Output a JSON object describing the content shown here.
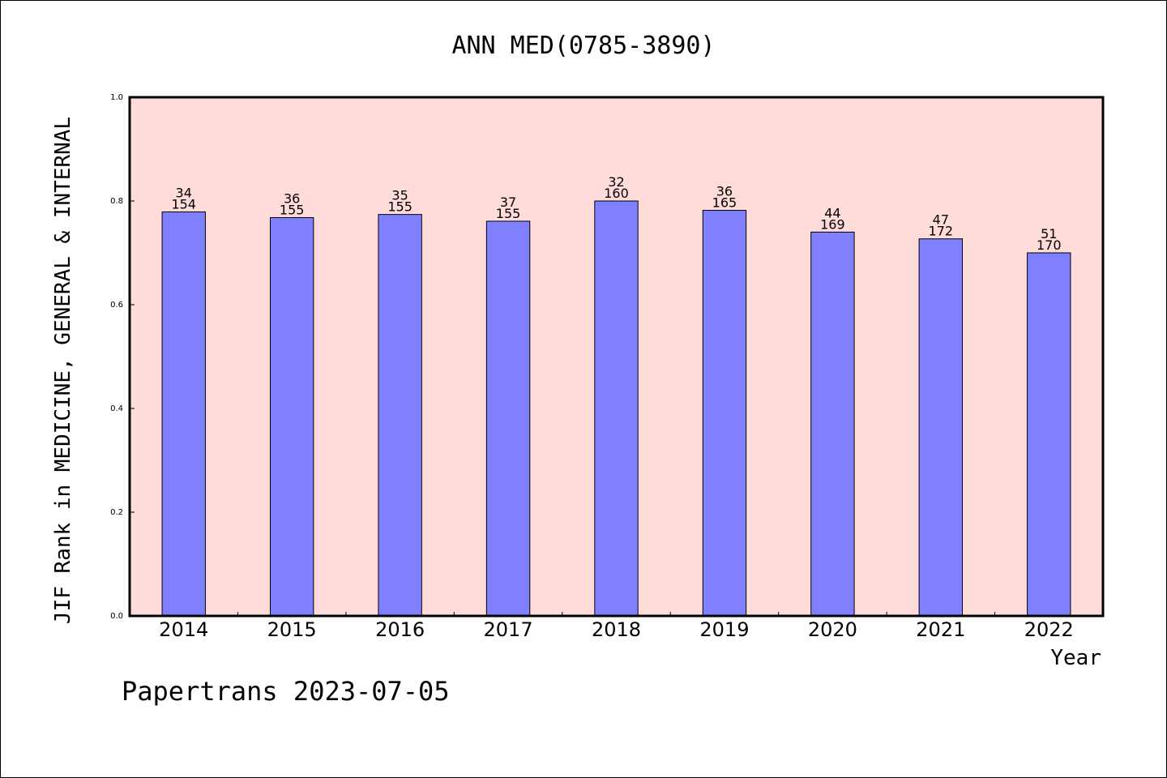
{
  "chart_data": {
    "type": "bar",
    "title": "ANN MED(0785-3890)",
    "xlabel": "Year",
    "ylabel": "JIF Rank in MEDICINE, GENERAL & INTERNAL",
    "ylim": [
      0,
      1
    ],
    "yticks": [
      "0.0",
      "0.2",
      "0.4",
      "0.6",
      "0.8",
      "1.0"
    ],
    "categories": [
      "2014",
      "2015",
      "2016",
      "2017",
      "2018",
      "2019",
      "2020",
      "2021",
      "2022"
    ],
    "values": [
      0.779,
      0.768,
      0.774,
      0.761,
      0.8,
      0.782,
      0.74,
      0.727,
      0.7
    ],
    "rank_labels": [
      "34",
      "36",
      "35",
      "37",
      "32",
      "36",
      "44",
      "47",
      "51"
    ],
    "total_labels": [
      "154",
      "155",
      "155",
      "155",
      "160",
      "165",
      "169",
      "172",
      "170"
    ],
    "colors": {
      "plot_bg": "#ffdcd9",
      "bar": "#8080ff"
    },
    "grid": false,
    "legend": "none"
  },
  "footer": "Papertrans 2023-07-05"
}
